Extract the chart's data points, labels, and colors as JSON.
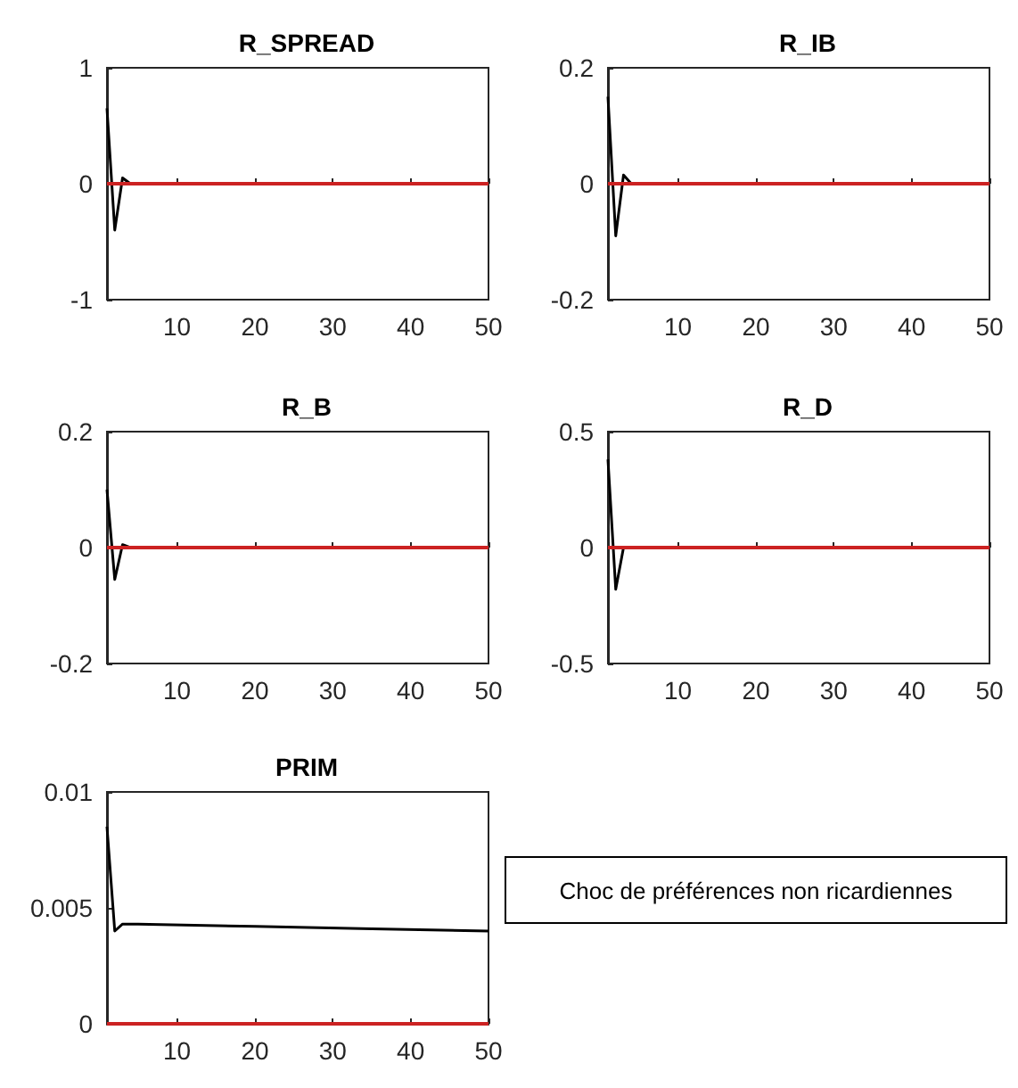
{
  "chart_data": [
    {
      "type": "line",
      "title": "R_SPREAD",
      "x": [
        1,
        2,
        3,
        4
      ],
      "series": [
        {
          "color": "#000000",
          "values": [
            0.65,
            -0.4,
            0.05,
            0
          ]
        }
      ],
      "xlim": [
        1,
        50
      ],
      "xticks": [
        10,
        20,
        30,
        40,
        50
      ],
      "ylim": [
        -1,
        1
      ],
      "yticks": [
        -1,
        0,
        1
      ],
      "marker": "none",
      "ref_lines": [
        {
          "axis": "y",
          "value": 0,
          "color": "#cc2222"
        }
      ]
    },
    {
      "type": "line",
      "title": "R_IB",
      "x": [
        1,
        2,
        3,
        4
      ],
      "series": [
        {
          "color": "#000000",
          "values": [
            0.15,
            -0.09,
            0.015,
            0
          ]
        }
      ],
      "xlim": [
        1,
        50
      ],
      "xticks": [
        10,
        20,
        30,
        40,
        50
      ],
      "ylim": [
        -0.2,
        0.2
      ],
      "yticks": [
        -0.2,
        0,
        0.2
      ],
      "marker": "none",
      "ref_lines": [
        {
          "axis": "y",
          "value": 0,
          "color": "#cc2222"
        }
      ]
    },
    {
      "type": "line",
      "title": "R_B",
      "x": [
        1,
        2,
        3,
        4
      ],
      "series": [
        {
          "color": "#000000",
          "values": [
            0.1,
            -0.055,
            0.005,
            0
          ]
        }
      ],
      "xlim": [
        1,
        50
      ],
      "xticks": [
        10,
        20,
        30,
        40,
        50
      ],
      "ylim": [
        -0.2,
        0.2
      ],
      "yticks": [
        -0.2,
        0,
        0.2
      ],
      "marker": "none",
      "ref_lines": [
        {
          "axis": "y",
          "value": 0,
          "color": "#cc2222"
        }
      ]
    },
    {
      "type": "line",
      "title": "R_D",
      "x": [
        1,
        2,
        3
      ],
      "series": [
        {
          "color": "#000000",
          "values": [
            0.38,
            -0.18,
            0
          ]
        }
      ],
      "xlim": [
        1,
        50
      ],
      "xticks": [
        10,
        20,
        30,
        40,
        50
      ],
      "ylim": [
        -0.5,
        0.5
      ],
      "yticks": [
        -0.5,
        0,
        0.5
      ],
      "marker": "none",
      "ref_lines": [
        {
          "axis": "y",
          "value": 0,
          "color": "#cc2222"
        }
      ]
    },
    {
      "type": "line",
      "title": "PRIM",
      "x": [
        1,
        2,
        3,
        5,
        20,
        35,
        50
      ],
      "series": [
        {
          "color": "#000000",
          "values": [
            0.0085,
            0.004,
            0.0043,
            0.0043,
            0.0042,
            0.0041,
            0.004
          ]
        }
      ],
      "xlim": [
        1,
        50
      ],
      "xticks": [
        10,
        20,
        30,
        40,
        50
      ],
      "ylim": [
        0,
        0.01
      ],
      "yticks": [
        0,
        0.005,
        0.01
      ],
      "marker": "none",
      "ref_lines": [
        {
          "axis": "y",
          "value": 0,
          "color": "#cc2222"
        }
      ]
    },
    {
      "type": "other",
      "annotations": [
        "Choc de préférences non ricardiennes"
      ]
    }
  ]
}
